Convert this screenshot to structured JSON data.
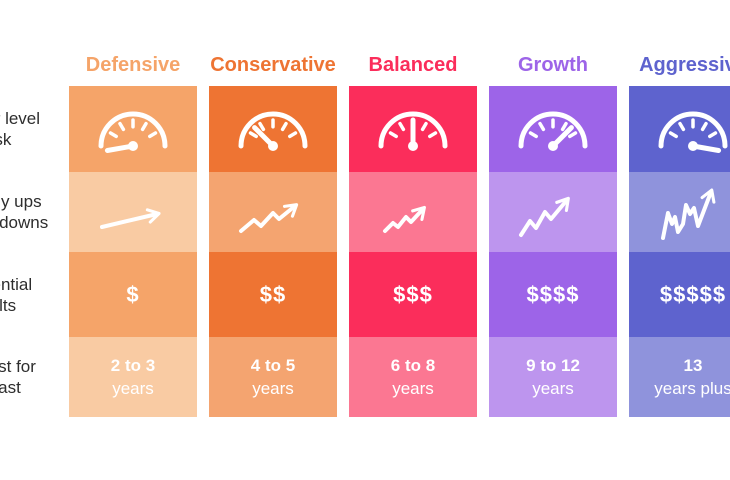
{
  "page": {
    "background": "#ffffff",
    "label_text_color": "#2d2d2d",
    "cell_text_color": "#ffffff",
    "description": "Investment option risk profile comparison table"
  },
  "row_labels": [
    {
      "line1": "Your level",
      "line2": "of risk"
    },
    {
      "line1": "Likely ups",
      "line2": "and downs"
    },
    {
      "line1": "Potential",
      "line2": "results"
    },
    {
      "line1": "Invest for",
      "line2": "at least"
    }
  ],
  "columns": [
    {
      "name": "Defensive",
      "color_strong": "#F5A469",
      "color_light": "#F9CBA3",
      "risk_level": 1,
      "gauge_needle_deg": 170,
      "trend_icon": "trend-arrow-straight",
      "dollars": "$",
      "invest_line1": "2 to 3",
      "invest_line2": "years"
    },
    {
      "name": "Conservative",
      "color_strong": "#EE7433",
      "color_light": "#F4A470",
      "risk_level": 2,
      "gauge_needle_deg": 225,
      "trend_icon": "trend-arrow-gentle-zigzag",
      "dollars": "$$",
      "invest_line1": "4 to 5",
      "invest_line2": "years"
    },
    {
      "name": "Balanced",
      "color_strong": "#FB2D5B",
      "color_light": "#FB7792",
      "risk_level": 3,
      "gauge_needle_deg": 270,
      "trend_icon": "trend-arrow-moderate-zigzag",
      "dollars": "$$$",
      "invest_line1": "6 to 8",
      "invest_line2": "years"
    },
    {
      "name": "Growth",
      "color_strong": "#9D64E8",
      "color_light": "#BD95EE",
      "risk_level": 4,
      "gauge_needle_deg": 315,
      "trend_icon": "trend-arrow-steep-zigzag",
      "dollars": "$$$$",
      "invest_line1": "9 to 12",
      "invest_line2": "years"
    },
    {
      "name": "Aggressive",
      "color_strong": "#5E63CE",
      "color_light": "#8F93DC",
      "risk_level": 5,
      "gauge_needle_deg": 10,
      "trend_icon": "trend-arrow-volatile-zigzag",
      "dollars": "$$$$$",
      "invest_line1": "13",
      "invest_line2": "years plus"
    }
  ]
}
